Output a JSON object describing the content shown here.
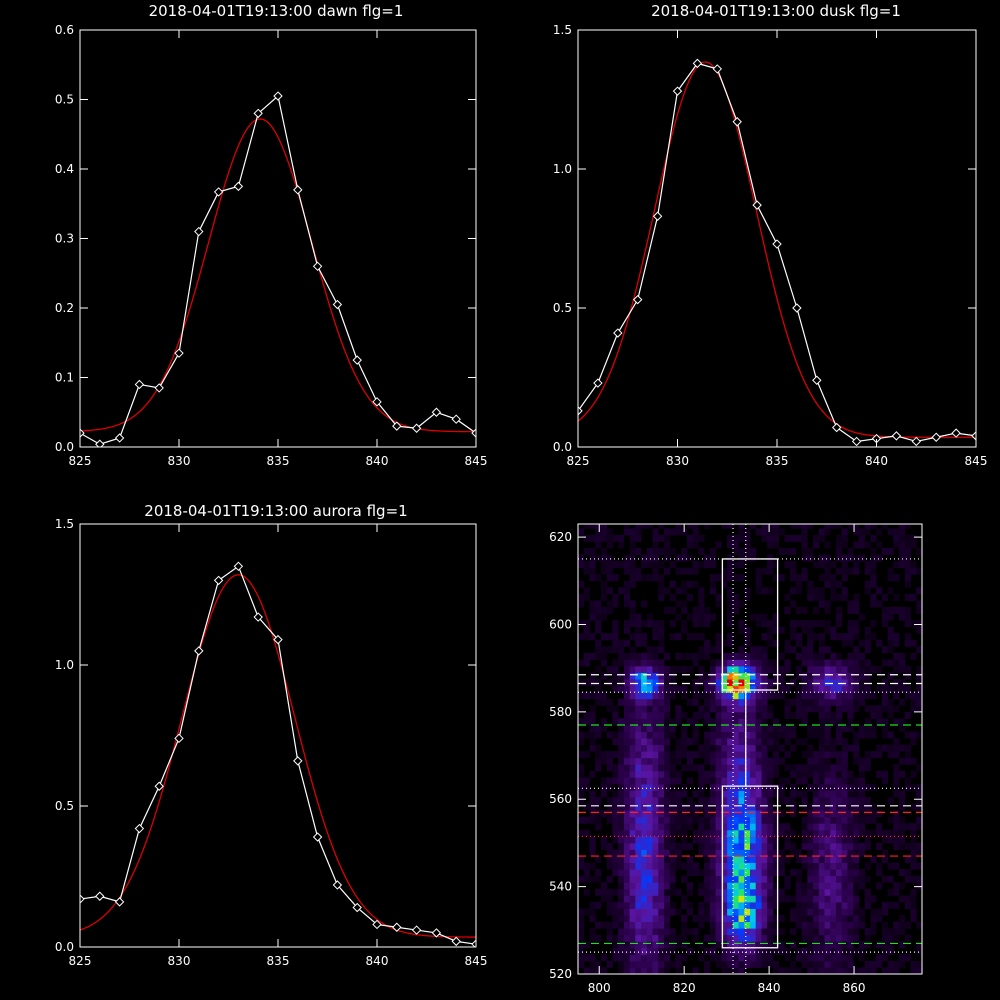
{
  "chart_data": [
    {
      "type": "line",
      "title": "2018-04-01T19:13:00 dawn flg=1",
      "xlim": [
        825,
        845
      ],
      "ylim": [
        0,
        0.6
      ],
      "xticks": [
        825,
        830,
        835,
        840,
        845
      ],
      "yticks": [
        0.0,
        0.1,
        0.2,
        0.3,
        0.4,
        0.5,
        0.6
      ],
      "ytick_labels": [
        "0.0",
        "0.1",
        "0.2",
        "0.3",
        "0.4",
        "0.5",
        "0.6"
      ],
      "series": [
        {
          "color": "#ffffff",
          "marker": "diamond",
          "x": [
            825,
            826,
            827,
            828,
            829,
            830,
            831,
            832,
            833,
            834,
            835,
            836,
            837,
            838,
            839,
            840,
            841,
            842,
            843,
            844,
            845
          ],
          "y": [
            0.02,
            0.004,
            0.013,
            0.09,
            0.085,
            0.135,
            0.31,
            0.367,
            0.375,
            0.48,
            0.505,
            0.37,
            0.26,
            0.205,
            0.125,
            0.065,
            0.03,
            0.027,
            0.05,
            0.04,
            0.02
          ]
        },
        {
          "color": "#dd0000",
          "fit": {
            "amplitude": 0.45,
            "center": 834.1,
            "sigma": 2.6,
            "offset": 0.022
          }
        }
      ]
    },
    {
      "type": "line",
      "title": "2018-04-01T19:13:00 dusk flg=1",
      "xlim": [
        825,
        845
      ],
      "ylim": [
        0,
        1.5
      ],
      "xticks": [
        825,
        830,
        835,
        840,
        845
      ],
      "yticks": [
        0.0,
        0.5,
        1.0,
        1.5
      ],
      "ytick_labels": [
        "0.0",
        "0.5",
        "1.0",
        "1.5"
      ],
      "series": [
        {
          "color": "#ffffff",
          "marker": "diamond",
          "x": [
            825,
            826,
            827,
            828,
            829,
            830,
            831,
            832,
            833,
            834,
            835,
            836,
            837,
            838,
            839,
            840,
            841,
            842,
            843,
            844,
            845
          ],
          "y": [
            0.13,
            0.23,
            0.41,
            0.53,
            0.83,
            1.28,
            1.38,
            1.36,
            1.17,
            0.87,
            0.73,
            0.5,
            0.24,
            0.07,
            0.02,
            0.03,
            0.04,
            0.02,
            0.035,
            0.05,
            0.04
          ]
        },
        {
          "color": "#dd0000",
          "fit": {
            "amplitude": 1.35,
            "center": 831.4,
            "sigma": 2.55,
            "offset": 0.035
          }
        }
      ]
    },
    {
      "type": "line",
      "title": "2018-04-01T19:13:00 aurora flg=1",
      "xlim": [
        825,
        845
      ],
      "ylim": [
        0,
        1.5
      ],
      "xticks": [
        825,
        830,
        835,
        840,
        845
      ],
      "yticks": [
        0.0,
        0.5,
        1.0,
        1.5
      ],
      "ytick_labels": [
        "0.0",
        "0.5",
        "1.0",
        "1.5"
      ],
      "series": [
        {
          "color": "#ffffff",
          "marker": "diamond",
          "x": [
            825,
            826,
            827,
            828,
            829,
            830,
            831,
            832,
            833,
            834,
            835,
            836,
            837,
            838,
            839,
            840,
            841,
            842,
            843,
            844,
            845
          ],
          "y": [
            0.17,
            0.18,
            0.16,
            0.42,
            0.57,
            0.74,
            1.05,
            1.3,
            1.35,
            1.17,
            1.09,
            0.66,
            0.39,
            0.22,
            0.14,
            0.08,
            0.07,
            0.06,
            0.05,
            0.02,
            0.01
          ]
        },
        {
          "color": "#dd0000",
          "fit": {
            "amplitude": 1.285,
            "center": 833.0,
            "sigma": 2.85,
            "offset": 0.035
          }
        }
      ]
    },
    {
      "type": "heatmap",
      "title": "",
      "xlim": [
        795,
        876
      ],
      "ylim": [
        520,
        623
      ],
      "xticks": [
        800,
        820,
        840,
        860
      ],
      "yticks": [
        520,
        540,
        560,
        580,
        600,
        620
      ],
      "blobs": [
        {
          "x": 832,
          "y": 586,
          "sx": 3.0,
          "sy": 2.6,
          "peak": 1.0
        },
        {
          "x": 833,
          "y": 549,
          "sx": 3.4,
          "sy": 11,
          "peak": 0.55
        },
        {
          "x": 833,
          "y": 533,
          "sx": 3.0,
          "sy": 5,
          "peak": 0.45
        },
        {
          "x": 810,
          "y": 586,
          "sx": 2.5,
          "sy": 2.5,
          "peak": 0.55
        },
        {
          "x": 810,
          "y": 543,
          "sx": 3.0,
          "sy": 16,
          "peak": 0.33
        },
        {
          "x": 854,
          "y": 586,
          "sx": 3.5,
          "sy": 2.8,
          "peak": 0.3
        },
        {
          "x": 854,
          "y": 543,
          "sx": 3.5,
          "sy": 14,
          "peak": 0.18
        },
        {
          "x": 832,
          "y": 572,
          "sx": 3.5,
          "sy": 8,
          "peak": 0.15
        },
        {
          "x": 810,
          "y": 570,
          "sx": 3.5,
          "sy": 9,
          "peak": 0.12
        }
      ],
      "overlays": {
        "white_dashed_h": [
          588.5,
          586.5,
          558.5
        ],
        "green_dashed_h": [
          577,
          527
        ],
        "red_dashed_h": [
          557,
          547
        ],
        "white_dotted_h": [
          615,
          584.5,
          562.5,
          525
        ],
        "red_dotted_h": [
          551.5
        ],
        "white_dotted_v": [
          831.5,
          834.5
        ],
        "white_boxes": [
          {
            "x0": 829,
            "x1": 842,
            "y0": 526,
            "y1": 563
          },
          {
            "x0": 829,
            "x1": 842,
            "y0": 585,
            "y1": 615
          }
        ],
        "white_lines": [
          [
            834.5,
            563,
            834.5,
            585
          ]
        ]
      }
    }
  ]
}
